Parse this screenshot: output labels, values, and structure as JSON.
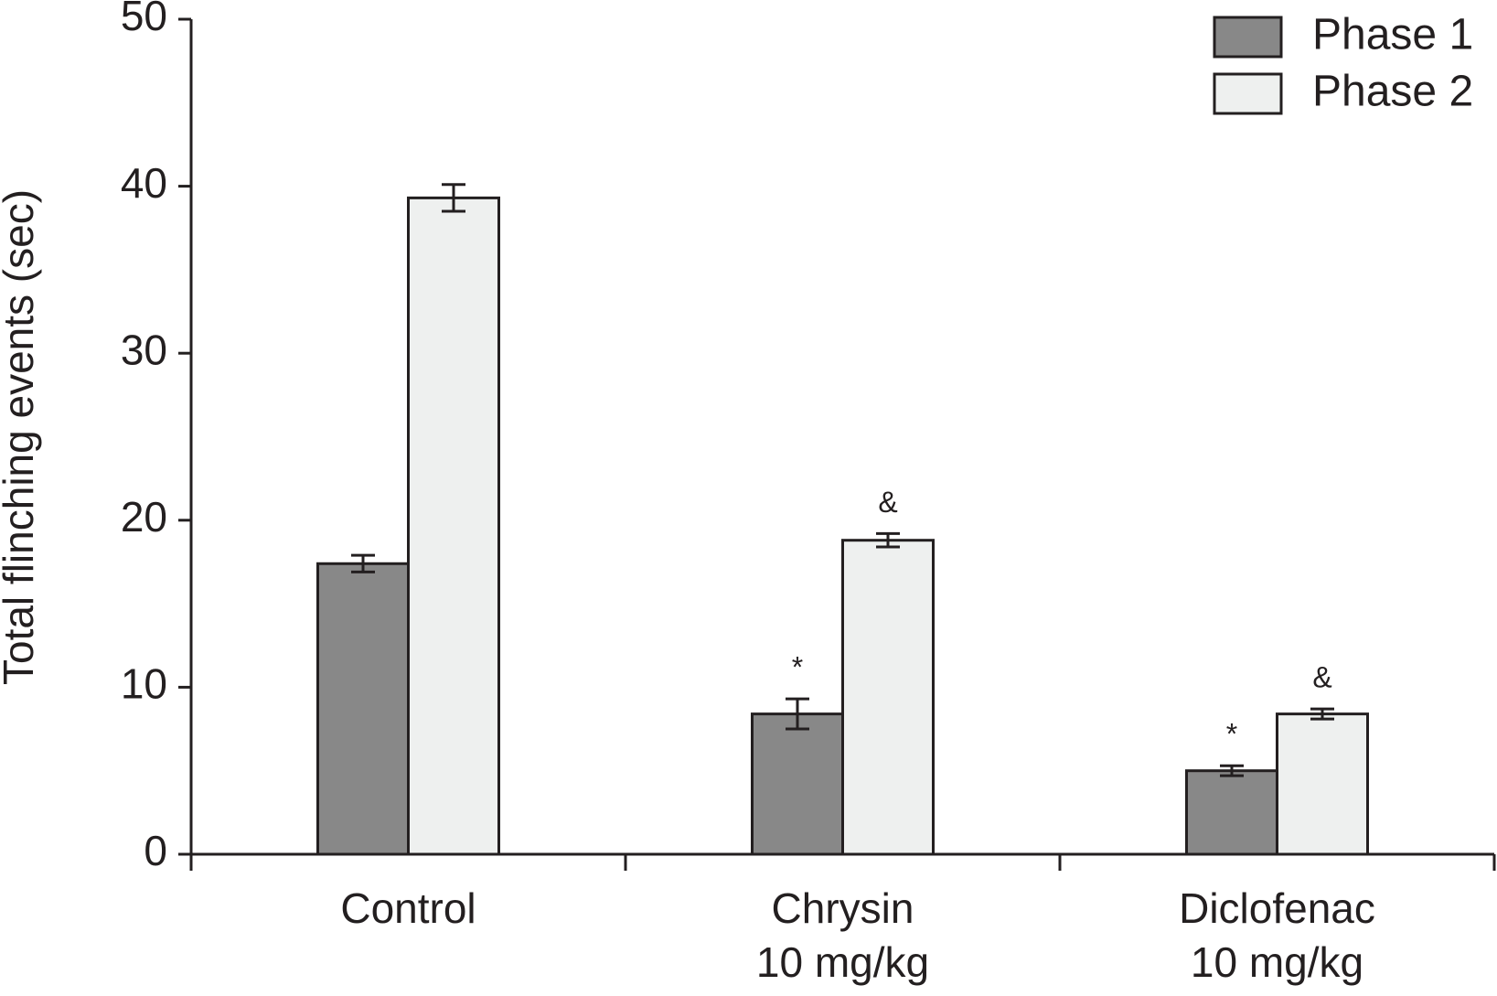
{
  "chart_data": {
    "type": "bar",
    "y_label": "Total flinching events (sec)",
    "categories": [
      [
        "Control"
      ],
      [
        "Chrysin",
        "10 mg/kg"
      ],
      [
        "Diclofenac",
        "10 mg/kg"
      ]
    ],
    "series": [
      {
        "name": "Phase 1",
        "color": "#888888",
        "values": [
          17.4,
          8.4,
          5.0
        ],
        "errors": [
          0.5,
          0.9,
          0.3
        ],
        "markers": [
          null,
          "*",
          "*"
        ]
      },
      {
        "name": "Phase 2",
        "color": "#eef0ef",
        "values": [
          39.3,
          18.8,
          8.4
        ],
        "errors": [
          0.8,
          0.4,
          0.3
        ],
        "markers": [
          null,
          "&",
          "&"
        ]
      }
    ],
    "ylim": [
      0,
      50
    ],
    "yticks": [
      0,
      10,
      20,
      30,
      40,
      50
    ],
    "legend": "top-right"
  }
}
